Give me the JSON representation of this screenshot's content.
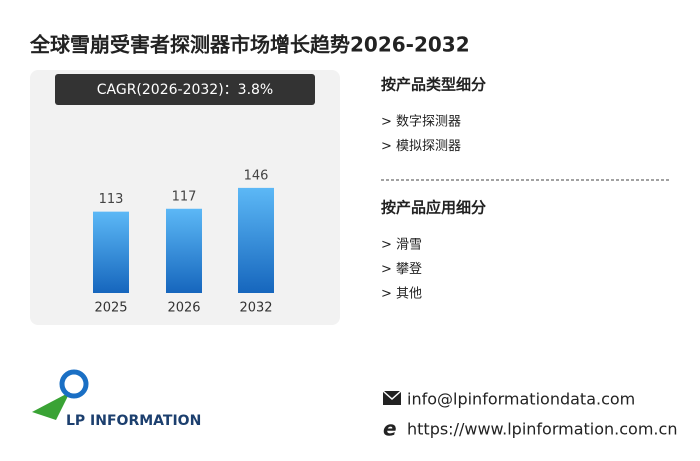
{
  "title": "全球雪崩受害者探测器市场增长趋势2026-2032",
  "cagr": "CAGR(2026-2032)：3.8%",
  "chart_data": {
    "type": "bar",
    "categories": [
      "2025",
      "2026",
      "2032"
    ],
    "values": [
      113,
      117,
      146
    ]
  },
  "segments": [
    {
      "heading": "按产品类型细分",
      "items": [
        "> 数字探测器",
        "> 模拟探测器"
      ]
    },
    {
      "heading": "按产品应用细分",
      "items": [
        "> 滑雪",
        "> 攀登",
        "> 其他"
      ]
    }
  ],
  "logo": "LP INFORMATION",
  "contact": {
    "email": "info@lpinformationdata.com",
    "website": "https://www.lpinformation.com.cn"
  }
}
